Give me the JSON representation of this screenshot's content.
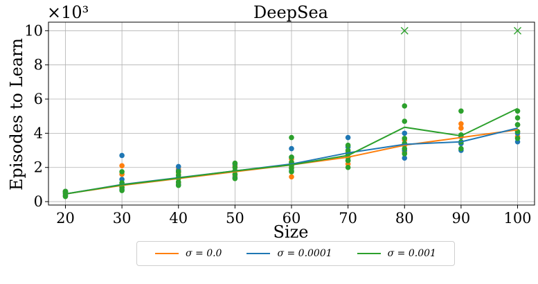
{
  "chart_data": {
    "type": "line",
    "title": "DeepSea",
    "xlabel": "Size",
    "ylabel": "Episodes to Learn",
    "y_multiplier_label": "×10³",
    "xlim": [
      17,
      103
    ],
    "ylim": [
      -0.2,
      10.5
    ],
    "x_ticks": [
      20,
      30,
      40,
      50,
      60,
      70,
      80,
      90,
      100
    ],
    "y_ticks": [
      0,
      2,
      4,
      6,
      8,
      10
    ],
    "grid": true,
    "legend_position": "bottom-center",
    "series": [
      {
        "name": "σ = 0.0",
        "color": "#ff7f0e",
        "x": [
          20,
          30,
          40,
          50,
          60,
          70,
          80,
          90,
          100
        ],
        "y": [
          0.45,
          0.95,
          1.35,
          1.75,
          2.15,
          2.6,
          3.3,
          3.75,
          4.2
        ],
        "points": [
          [
            20,
            0.35
          ],
          [
            20,
            0.5
          ],
          [
            20,
            0.6
          ],
          [
            30,
            0.8
          ],
          [
            30,
            1.0
          ],
          [
            30,
            1.6
          ],
          [
            30,
            2.1
          ],
          [
            40,
            1.1
          ],
          [
            40,
            1.4
          ],
          [
            40,
            1.7
          ],
          [
            40,
            1.9
          ],
          [
            50,
            1.5
          ],
          [
            50,
            1.8
          ],
          [
            50,
            2.1
          ],
          [
            60,
            1.45
          ],
          [
            60,
            2.0
          ],
          [
            60,
            2.3
          ],
          [
            60,
            2.5
          ],
          [
            70,
            2.2
          ],
          [
            70,
            2.6
          ],
          [
            70,
            2.9
          ],
          [
            80,
            2.9
          ],
          [
            80,
            3.3
          ],
          [
            80,
            3.6
          ],
          [
            90,
            3.4
          ],
          [
            90,
            3.8
          ],
          [
            90,
            4.3
          ],
          [
            90,
            4.55
          ],
          [
            100,
            3.8
          ],
          [
            100,
            4.1
          ],
          [
            100,
            4.5
          ]
        ]
      },
      {
        "name": "σ = 0.0001",
        "color": "#1f77b4",
        "x": [
          20,
          30,
          40,
          50,
          60,
          70,
          80,
          90,
          100
        ],
        "y": [
          0.45,
          1.0,
          1.4,
          1.8,
          2.2,
          2.85,
          3.35,
          3.5,
          4.3
        ],
        "points": [
          [
            20,
            0.35
          ],
          [
            20,
            0.5
          ],
          [
            20,
            0.6
          ],
          [
            30,
            0.7
          ],
          [
            30,
            1.0
          ],
          [
            30,
            1.3
          ],
          [
            30,
            2.7
          ],
          [
            40,
            1.0
          ],
          [
            40,
            1.4
          ],
          [
            40,
            1.8
          ],
          [
            40,
            2.05
          ],
          [
            50,
            1.4
          ],
          [
            50,
            1.8
          ],
          [
            50,
            2.2
          ],
          [
            60,
            1.8
          ],
          [
            60,
            2.2
          ],
          [
            60,
            2.6
          ],
          [
            60,
            3.1
          ],
          [
            70,
            2.4
          ],
          [
            70,
            2.8
          ],
          [
            70,
            3.2
          ],
          [
            70,
            3.75
          ],
          [
            80,
            2.55
          ],
          [
            80,
            3.0
          ],
          [
            80,
            3.4
          ],
          [
            80,
            4.0
          ],
          [
            90,
            3.0
          ],
          [
            90,
            3.4
          ],
          [
            90,
            3.8
          ],
          [
            100,
            3.5
          ],
          [
            100,
            4.0
          ],
          [
            100,
            4.5
          ]
        ]
      },
      {
        "name": "σ = 0.001",
        "color": "#2ca02c",
        "x": [
          20,
          30,
          40,
          50,
          60,
          70,
          80,
          90,
          100
        ],
        "y": [
          0.45,
          0.98,
          1.38,
          1.8,
          2.15,
          2.7,
          4.35,
          3.85,
          5.45
        ],
        "points": [
          [
            20,
            0.3
          ],
          [
            20,
            0.45
          ],
          [
            20,
            0.55
          ],
          [
            20,
            0.6
          ],
          [
            30,
            0.65
          ],
          [
            30,
            0.85
          ],
          [
            30,
            1.0
          ],
          [
            30,
            1.1
          ],
          [
            30,
            1.75
          ],
          [
            40,
            0.95
          ],
          [
            40,
            1.15
          ],
          [
            40,
            1.35
          ],
          [
            40,
            1.55
          ],
          [
            40,
            1.75
          ],
          [
            50,
            1.35
          ],
          [
            50,
            1.6
          ],
          [
            50,
            1.8
          ],
          [
            50,
            2.0
          ],
          [
            50,
            2.25
          ],
          [
            60,
            1.75
          ],
          [
            60,
            1.95
          ],
          [
            60,
            2.1
          ],
          [
            60,
            2.3
          ],
          [
            60,
            2.6
          ],
          [
            60,
            3.75
          ],
          [
            70,
            2.0
          ],
          [
            70,
            2.4
          ],
          [
            70,
            2.6
          ],
          [
            70,
            2.8
          ],
          [
            70,
            3.0
          ],
          [
            70,
            3.3
          ],
          [
            80,
            2.8
          ],
          [
            80,
            3.1
          ],
          [
            80,
            3.4
          ],
          [
            80,
            3.7
          ],
          [
            80,
            4.7
          ],
          [
            80,
            5.6
          ],
          [
            90,
            3.1
          ],
          [
            90,
            3.5
          ],
          [
            90,
            3.9
          ],
          [
            90,
            5.3
          ],
          [
            100,
            3.7
          ],
          [
            100,
            4.1
          ],
          [
            100,
            4.5
          ],
          [
            100,
            4.9
          ],
          [
            100,
            5.3
          ]
        ],
        "cross_markers": [
          [
            80,
            10
          ],
          [
            100,
            10
          ]
        ]
      }
    ]
  }
}
